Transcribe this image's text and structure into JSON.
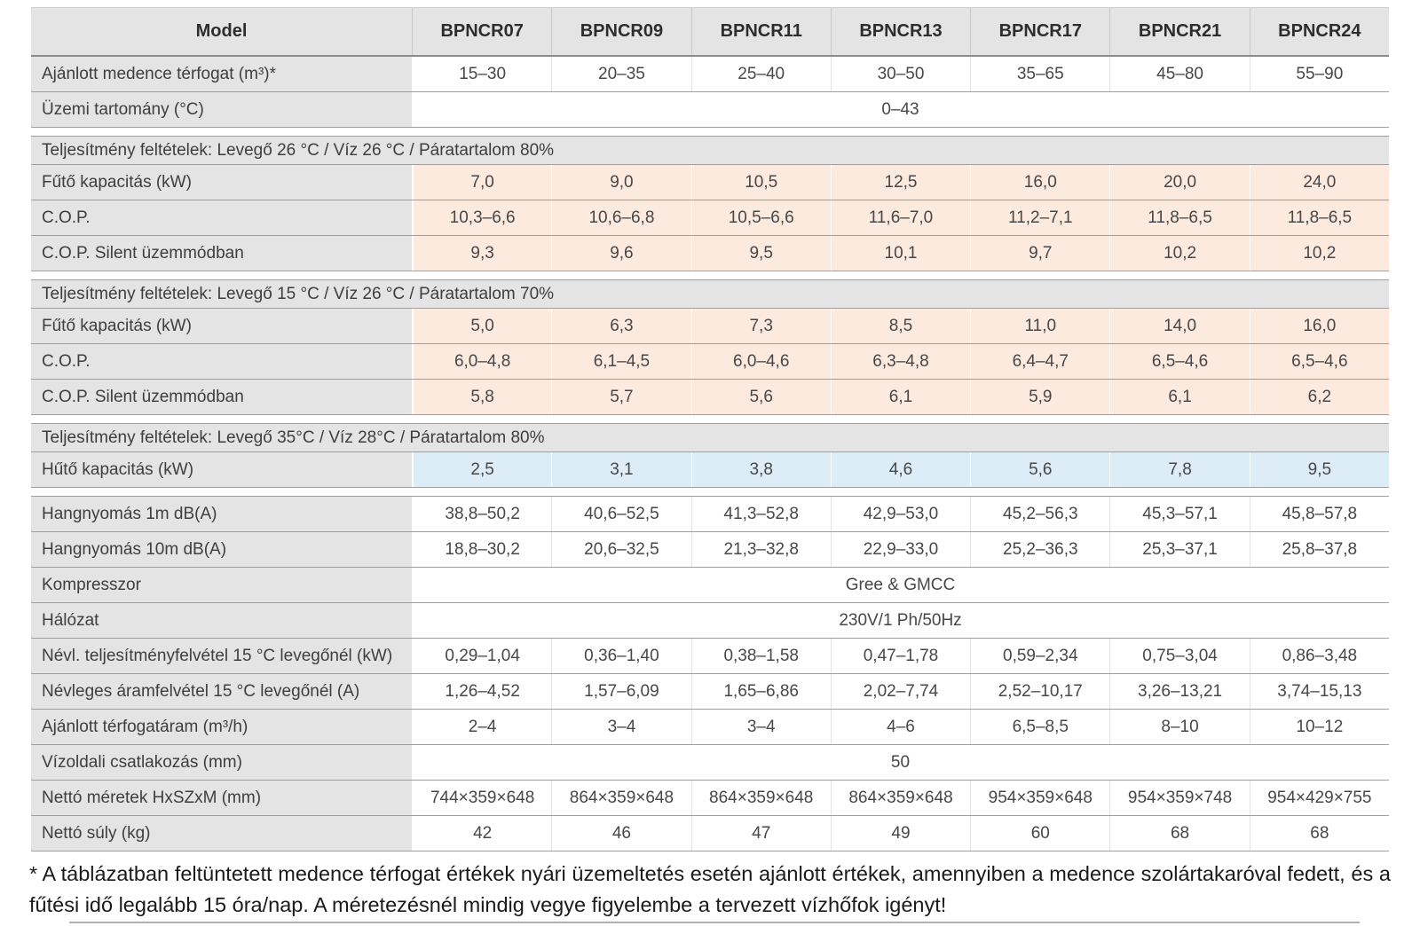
{
  "colors": {
    "header_bg": "#e4e4e4",
    "label_bg": "#e4e4e4",
    "heating_tint": "#fceadf",
    "cooling_tint": "#ddedf8",
    "row_line": "#9f9f9f"
  },
  "table": {
    "header": {
      "label": "Model",
      "columns": [
        "BPNCR07",
        "BPNCR09",
        "BPNCR11",
        "BPNCR13",
        "BPNCR17",
        "BPNCR21",
        "BPNCR24"
      ]
    },
    "rows": [
      {
        "type": "values",
        "tint": "white",
        "label": "Ajánlott medence térfogat (m³)*",
        "values": [
          "15–30",
          "20–35",
          "25–40",
          "30–50",
          "35–65",
          "45–80",
          "55–90"
        ]
      },
      {
        "type": "span",
        "label": "Üzemi tartomány (°C)",
        "value": "0–43"
      },
      {
        "type": "gap"
      },
      {
        "type": "section",
        "label": "Teljesítmény feltételek: Levegő 26 °C / Víz 26 °C / Páratartalom 80%"
      },
      {
        "type": "values",
        "tint": "peach",
        "label": "Fűtő kapacitás (kW)",
        "values": [
          "7,0",
          "9,0",
          "10,5",
          "12,5",
          "16,0",
          "20,0",
          "24,0"
        ]
      },
      {
        "type": "values",
        "tint": "peach",
        "label": "C.O.P.",
        "values": [
          "10,3–6,6",
          "10,6–6,8",
          "10,5–6,6",
          "11,6–7,0",
          "11,2–7,1",
          "11,8–6,5",
          "11,8–6,5"
        ]
      },
      {
        "type": "values",
        "tint": "peach",
        "label": "C.O.P. Silent üzemmódban",
        "values": [
          "9,3",
          "9,6",
          "9,5",
          "10,1",
          "9,7",
          "10,2",
          "10,2"
        ]
      },
      {
        "type": "gap"
      },
      {
        "type": "section",
        "label": "Teljesítmény feltételek: Levegő 15 °C / Víz 26 °C / Páratartalom 70%"
      },
      {
        "type": "values",
        "tint": "peach",
        "label": "Fűtő kapacitás (kW)",
        "values": [
          "5,0",
          "6,3",
          "7,3",
          "8,5",
          "11,0",
          "14,0",
          "16,0"
        ]
      },
      {
        "type": "values",
        "tint": "peach",
        "label": "C.O.P.",
        "values": [
          "6,0–4,8",
          "6,1–4,5",
          "6,0–4,6",
          "6,3–4,8",
          "6,4–4,7",
          "6,5–4,6",
          "6,5–4,6"
        ]
      },
      {
        "type": "values",
        "tint": "peach",
        "label": "C.O.P. Silent üzemmódban",
        "values": [
          "5,8",
          "5,7",
          "5,6",
          "6,1",
          "5,9",
          "6,1",
          "6,2"
        ]
      },
      {
        "type": "gap"
      },
      {
        "type": "section",
        "label": "Teljesítmény feltételek: Levegő 35°C / Víz 28°C / Páratartalom 80%"
      },
      {
        "type": "values",
        "tint": "blue",
        "label": "Hűtő kapacitás (kW)",
        "values": [
          "2,5",
          "3,1",
          "3,8",
          "4,6",
          "5,6",
          "7,8",
          "9,5"
        ]
      },
      {
        "type": "gap"
      },
      {
        "type": "values",
        "tint": "white",
        "label": "Hangnyomás 1m dB(A)",
        "values": [
          "38,8–50,2",
          "40,6–52,5",
          "41,3–52,8",
          "42,9–53,0",
          "45,2–56,3",
          "45,3–57,1",
          "45,8–57,8"
        ]
      },
      {
        "type": "values",
        "tint": "white",
        "label": "Hangnyomás 10m dB(A)",
        "values": [
          "18,8–30,2",
          "20,6–32,5",
          "21,3–32,8",
          "22,9–33,0",
          "25,2–36,3",
          "25,3–37,1",
          "25,8–37,8"
        ]
      },
      {
        "type": "span",
        "label": "Kompresszor",
        "value": "Gree & GMCC"
      },
      {
        "type": "span",
        "label": "Hálózat",
        "value": "230V/1 Ph/50Hz"
      },
      {
        "type": "values",
        "tint": "white",
        "label": "Névl. teljesítményfelvétel 15 °C levegőnél (kW)",
        "values": [
          "0,29–1,04",
          "0,36–1,40",
          "0,38–1,58",
          "0,47–1,78",
          "0,59–2,34",
          "0,75–3,04",
          "0,86–3,48"
        ]
      },
      {
        "type": "values",
        "tint": "white",
        "label": "Névleges áramfelvétel 15 °C levegőnél (A)",
        "values": [
          "1,26–4,52",
          "1,57–6,09",
          "1,65–6,86",
          "2,02–7,74",
          "2,52–10,17",
          "3,26–13,21",
          "3,74–15,13"
        ]
      },
      {
        "type": "values",
        "tint": "white",
        "label": "Ajánlott térfogatáram (m³/h)",
        "values": [
          "2–4",
          "3–4",
          "3–4",
          "4–6",
          "6,5–8,5",
          "8–10",
          "10–12"
        ]
      },
      {
        "type": "span",
        "label": "Vízoldali csatlakozás (mm)",
        "value": "50"
      },
      {
        "type": "values",
        "tint": "white",
        "label": "Nettó méretek HxSZxM (mm)",
        "values": [
          "744×359×648",
          "864×359×648",
          "864×359×648",
          "864×359×648",
          "954×359×648",
          "954×359×748",
          "954×429×755"
        ]
      },
      {
        "type": "values",
        "tint": "white",
        "label": "Nettó súly (kg)",
        "values": [
          "42",
          "46",
          "47",
          "49",
          "60",
          "68",
          "68"
        ]
      }
    ]
  },
  "footnote": "* A táblázatban feltüntetett medence térfogat értékek nyári üzemeltetés esetén ajánlott értékek, amennyiben a medence szolártakaróval fedett, és a fűtési idő legalább 15 óra/nap. A méretezésnél mindig vegye figyelembe a tervezett vízhőfok igényt!"
}
